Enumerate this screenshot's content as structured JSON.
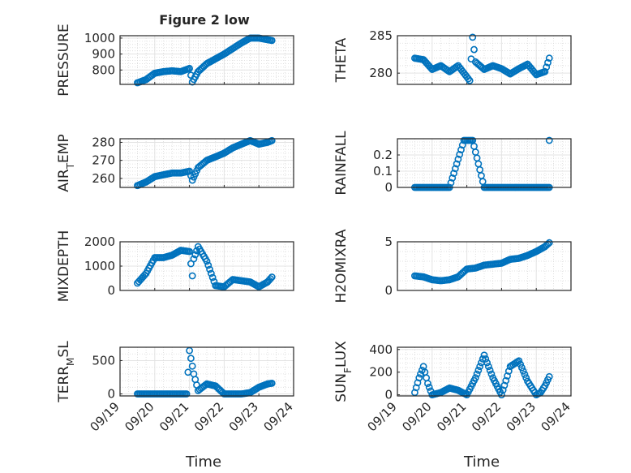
{
  "figure": {
    "title": "Figure 2 low",
    "x_label": "Time",
    "marker_color": "#0072BD",
    "grid": "major-and-minor",
    "x_ticks": [
      "09/19",
      "09/20",
      "09/21",
      "09/22",
      "09/23",
      "09/24"
    ]
  },
  "chart_data": [
    {
      "type": "scatter",
      "title": "Figure 2 low",
      "ylabel": "PRESSURE",
      "xlabel": "",
      "ylim": [
        710,
        1015
      ],
      "yticks": [
        800,
        900,
        1000
      ],
      "xlim": [
        "09/19",
        "09/24"
      ],
      "x": [
        "09/19 12:00",
        "09/19 18:00",
        "09/20 00:00",
        "09/20 06:00",
        "09/20 12:00",
        "09/20 18:00",
        "09/21 00:00",
        "09/21 02:00",
        "09/21 06:00",
        "09/21 12:00",
        "09/21 18:00",
        "09/22 00:00",
        "09/22 06:00",
        "09/22 12:00",
        "09/22 18:00",
        "09/23 00:00",
        "09/23 06:00",
        "09/23 09:00"
      ],
      "y": [
        720,
        740,
        780,
        790,
        795,
        790,
        810,
        725,
        790,
        840,
        870,
        900,
        935,
        970,
        1000,
        1000,
        990,
        985
      ]
    },
    {
      "type": "scatter",
      "ylabel": "THETA",
      "xlabel": "",
      "ylim": [
        278.5,
        285
      ],
      "yticks": [
        280,
        285
      ],
      "xlim": [
        "09/19",
        "09/24"
      ],
      "x": [
        "09/19 12:00",
        "09/19 18:00",
        "09/20 00:00",
        "09/20 06:00",
        "09/20 12:00",
        "09/20 18:00",
        "09/21 00:00",
        "09/21 02:00",
        "09/21 04:00",
        "09/21 06:00",
        "09/21 12:00",
        "09/21 18:00",
        "09/22 00:00",
        "09/22 06:00",
        "09/22 12:00",
        "09/22 18:00",
        "09/23 00:00",
        "09/23 06:00",
        "09/23 09:00"
      ],
      "y": [
        282,
        281.8,
        280.5,
        281,
        280.2,
        281,
        279.5,
        279.0,
        284.8,
        281.5,
        280.5,
        281,
        280.6,
        279.9,
        280.6,
        281.2,
        279.8,
        280.2,
        282
      ]
    },
    {
      "type": "scatter",
      "ylabel": "AIR_TEMP",
      "xlabel": "",
      "ylim": [
        255,
        282
      ],
      "yticks": [
        260,
        270,
        280
      ],
      "xlim": [
        "09/19",
        "09/24"
      ],
      "x": [
        "09/19 12:00",
        "09/19 18:00",
        "09/20 00:00",
        "09/20 06:00",
        "09/20 12:00",
        "09/20 18:00",
        "09/21 00:00",
        "09/21 02:00",
        "09/21 06:00",
        "09/21 12:00",
        "09/21 18:00",
        "09/22 00:00",
        "09/22 06:00",
        "09/22 12:00",
        "09/22 18:00",
        "09/23 00:00",
        "09/23 06:00",
        "09/23 09:00"
      ],
      "y": [
        256,
        258,
        261,
        262,
        263,
        263,
        264,
        259,
        266,
        270,
        272,
        274,
        277,
        279,
        281,
        279,
        280,
        281
      ]
    },
    {
      "type": "scatter",
      "ylabel": "RAINFALL",
      "xlabel": "",
      "ylim": [
        0,
        0.3
      ],
      "yticks": [
        0,
        0.1,
        0.2
      ],
      "xlim": [
        "09/19",
        "09/24"
      ],
      "x": [
        "09/19 12:00",
        "09/20 00:00",
        "09/20 12:00",
        "09/20 22:00",
        "09/21 00:00",
        "09/21 04:00",
        "09/21 12:00",
        "09/22 00:00",
        "09/22 12:00",
        "09/23 00:00",
        "09/23 09:00",
        "09/23 09:00"
      ],
      "y": [
        0,
        0,
        0,
        0.29,
        0.29,
        0.29,
        0,
        0,
        0,
        0,
        0,
        0.29
      ]
    },
    {
      "type": "scatter",
      "ylabel": "MIXDEPTH",
      "xlabel": "",
      "ylim": [
        0,
        2000
      ],
      "yticks": [
        0,
        1000,
        2000
      ],
      "xlim": [
        "09/19",
        "09/24"
      ],
      "x": [
        "09/19 12:00",
        "09/19 18:00",
        "09/20 00:00",
        "09/20 06:00",
        "09/20 12:00",
        "09/20 18:00",
        "09/21 00:00",
        "09/21 02:00",
        "09/21 03:00",
        "09/21 06:00",
        "09/21 12:00",
        "09/21 18:00",
        "09/22 00:00",
        "09/22 06:00",
        "09/22 12:00",
        "09/22 18:00",
        "09/23 00:00",
        "09/23 06:00",
        "09/23 09:00"
      ],
      "y": [
        300,
        700,
        1350,
        1350,
        1450,
        1650,
        1600,
        600,
        1300,
        1800,
        1200,
        200,
        150,
        450,
        400,
        350,
        150,
        350,
        550
      ]
    },
    {
      "type": "scatter",
      "ylabel": "H2OMIXRA",
      "xlabel": "",
      "ylim": [
        0,
        5
      ],
      "yticks": [
        0,
        5
      ],
      "xlim": [
        "09/19",
        "09/24"
      ],
      "x": [
        "09/19 12:00",
        "09/19 18:00",
        "09/20 00:00",
        "09/20 06:00",
        "09/20 12:00",
        "09/20 18:00",
        "09/21 00:00",
        "09/21 06:00",
        "09/21 12:00",
        "09/21 18:00",
        "09/22 00:00",
        "09/22 06:00",
        "09/22 12:00",
        "09/22 18:00",
        "09/23 00:00",
        "09/23 06:00",
        "09/23 09:00"
      ],
      "y": [
        1.5,
        1.4,
        1.1,
        1.0,
        1.1,
        1.4,
        2.2,
        2.3,
        2.6,
        2.7,
        2.8,
        3.2,
        3.3,
        3.6,
        4.0,
        4.5,
        4.9
      ]
    },
    {
      "type": "scatter",
      "ylabel": "TERR_MSL",
      "xlabel": "Time",
      "ylim": [
        -30,
        700
      ],
      "yticks": [
        0,
        500
      ],
      "xlim": [
        "09/19",
        "09/24"
      ],
      "x": [
        "09/19 12:00",
        "09/20 00:00",
        "09/20 12:00",
        "09/20 22:00",
        "09/21 00:00",
        "09/21 03:00",
        "09/21 06:00",
        "09/21 12:00",
        "09/21 18:00",
        "09/22 00:00",
        "09/22 06:00",
        "09/22 12:00",
        "09/22 18:00",
        "09/23 00:00",
        "09/23 06:00",
        "09/23 09:00"
      ],
      "y": [
        0,
        0,
        0,
        0,
        650,
        300,
        50,
        150,
        120,
        0,
        0,
        0,
        20,
        100,
        150,
        160
      ]
    },
    {
      "type": "scatter",
      "ylabel": "SUN_FLUX",
      "xlabel": "Time",
      "ylim": [
        -10,
        420
      ],
      "yticks": [
        0,
        200,
        400
      ],
      "xlim": [
        "09/19",
        "09/24"
      ],
      "x": [
        "09/19 12:00",
        "09/19 15:00",
        "09/19 18:00",
        "09/19 21:00",
        "09/20 00:00",
        "09/20 06:00",
        "09/20 12:00",
        "09/20 18:00",
        "09/21 00:00",
        "09/21 06:00",
        "09/21 12:00",
        "09/21 18:00",
        "09/22 00:00",
        "09/22 06:00",
        "09/22 12:00",
        "09/22 18:00",
        "09/23 00:00",
        "09/23 03:00",
        "09/23 06:00",
        "09/23 09:00"
      ],
      "y": [
        20,
        150,
        250,
        100,
        0,
        20,
        60,
        40,
        0,
        150,
        350,
        150,
        0,
        250,
        300,
        120,
        0,
        20,
        80,
        160
      ]
    }
  ]
}
